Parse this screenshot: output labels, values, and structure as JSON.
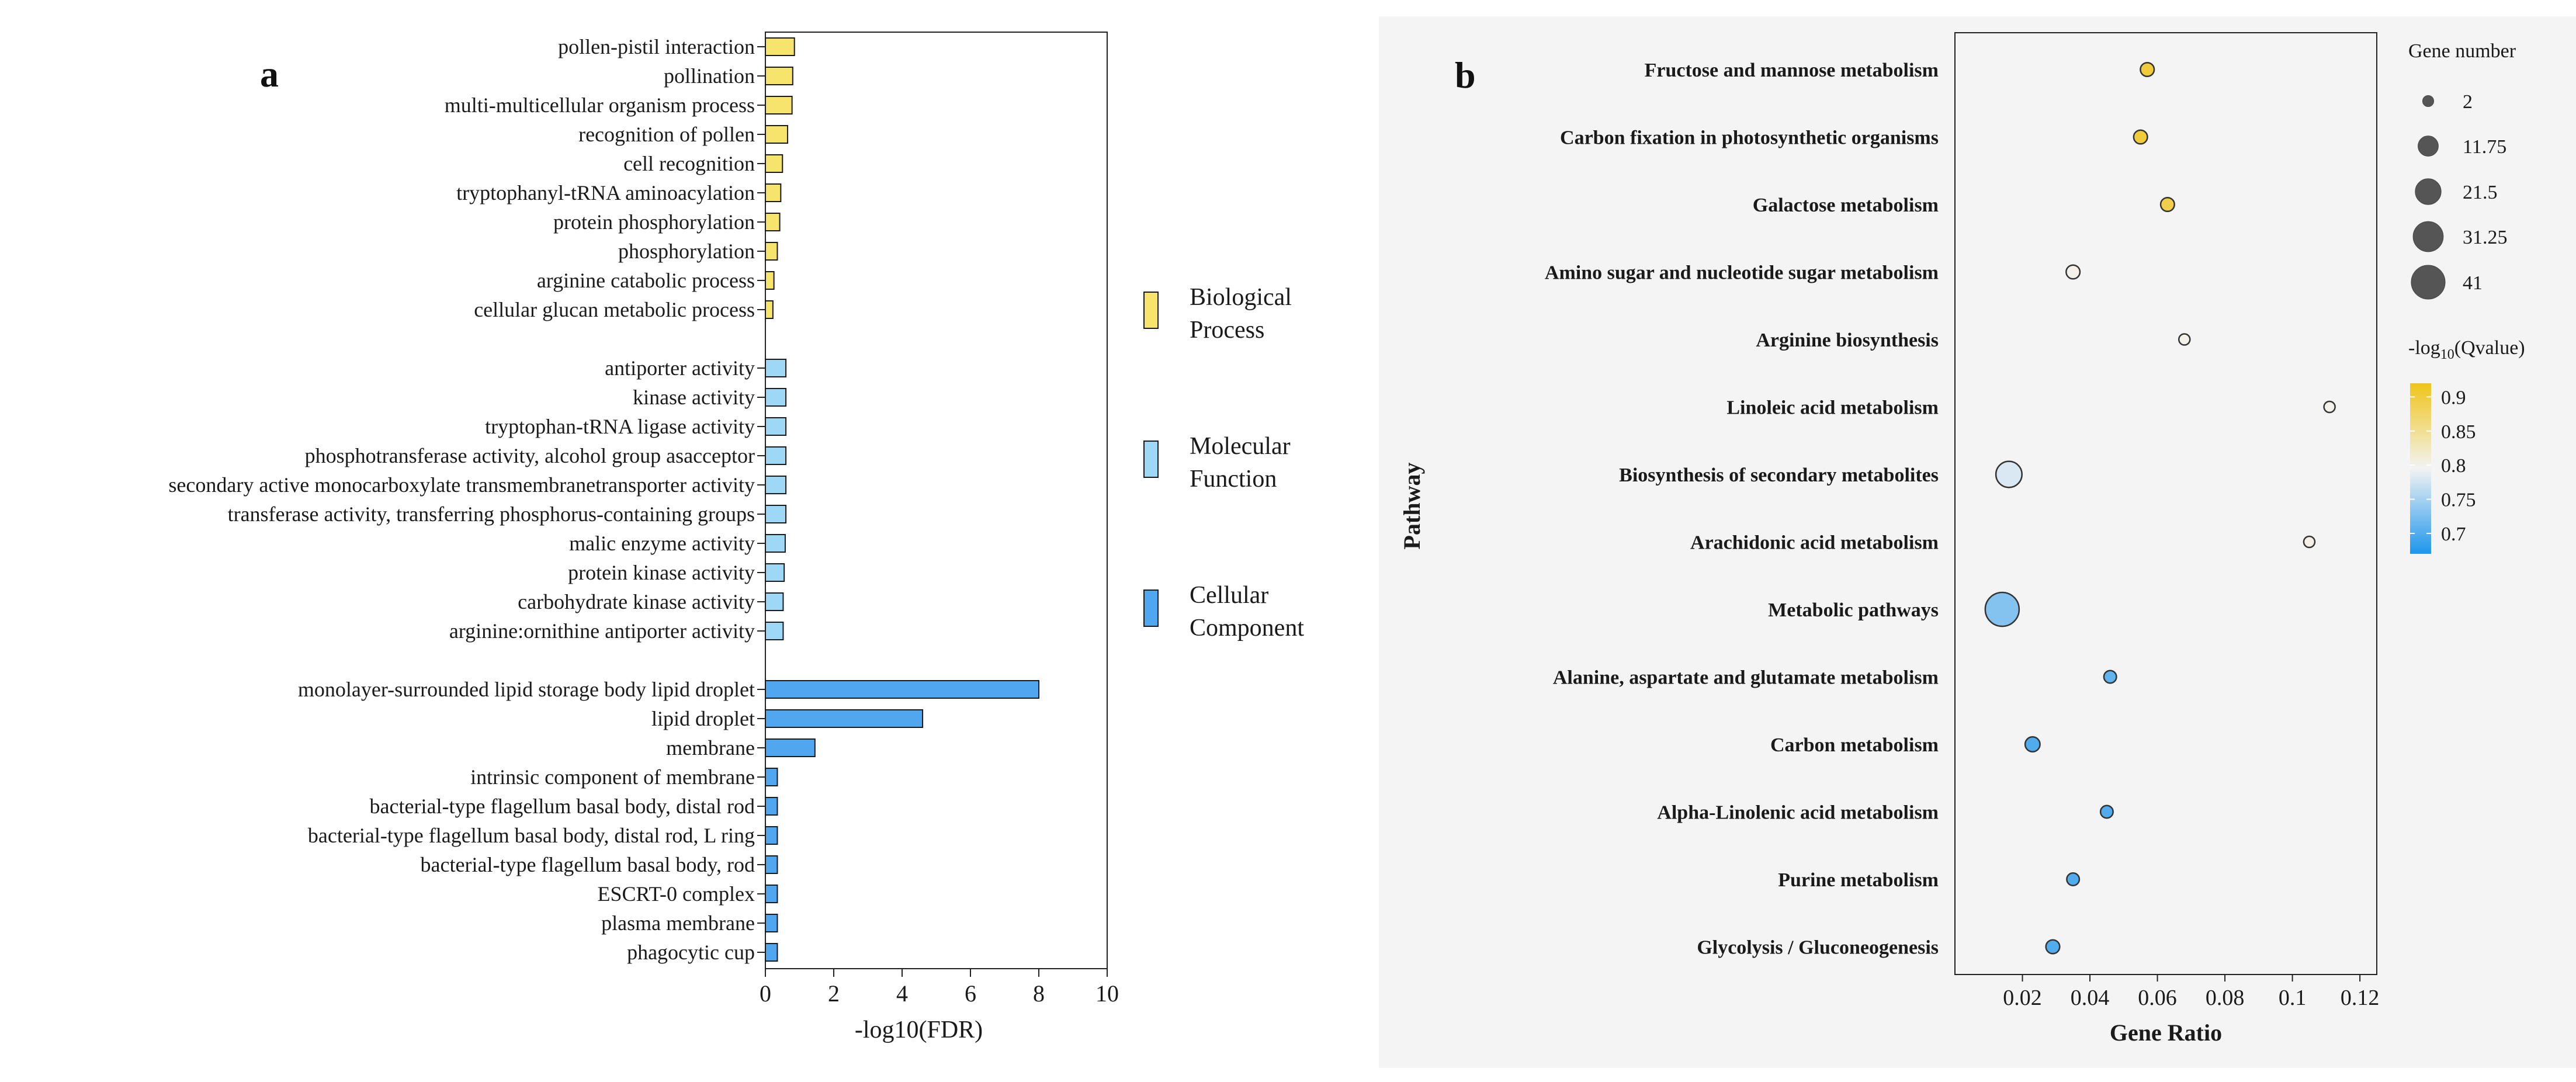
{
  "chart_data": [
    {
      "type": "bar",
      "orientation": "horizontal",
      "panel_label": "a",
      "xlabel": "-log10(FDR)",
      "xlim": [
        0,
        10
      ],
      "xticks": [
        "0",
        "2",
        "4",
        "6",
        "8",
        "10"
      ],
      "legend": [
        {
          "name": "Biological Process",
          "lines": [
            "Biological",
            "Process"
          ],
          "color": "#f6e46c"
        },
        {
          "name": "Molecular Function",
          "lines": [
            "Molecular",
            "Function"
          ],
          "color": "#9fd8f7"
        },
        {
          "name": "Cellular Component",
          "lines": [
            "Cellular",
            "Component"
          ],
          "color": "#4fa8ef"
        }
      ],
      "series": [
        {
          "name": "Biological Process",
          "color": "#f6e46c",
          "categories": [
            "pollen-pistil interaction",
            "pollination",
            "multi-multicellular organism process",
            "recognition of pollen",
            "cell recognition",
            "tryptophanyl-tRNA aminoacylation",
            "protein phosphorylation",
            "phosphorylation",
            "arginine catabolic process",
            "cellular glucan metabolic process"
          ],
          "values": [
            0.85,
            0.8,
            0.78,
            0.65,
            0.5,
            0.45,
            0.42,
            0.35,
            0.25,
            0.22
          ]
        },
        {
          "name": "Molecular Function",
          "color": "#9fd8f7",
          "categories": [
            "antiporter activity",
            "kinase activity",
            "tryptophan-tRNA ligase activity",
            "phosphotransferase activity, alcohol group asacceptor",
            "secondary active monocarboxylate transmembranetransporter activity",
            "transferase activity, transferring phosphorus-containing groups",
            "malic enzyme activity",
            "protein kinase activity",
            "carbohydrate kinase activity",
            "arginine:ornithine antiporter activity"
          ],
          "values": [
            0.6,
            0.6,
            0.6,
            0.6,
            0.6,
            0.6,
            0.58,
            0.55,
            0.52,
            0.52
          ]
        },
        {
          "name": "Cellular Component",
          "color": "#4fa8ef",
          "categories": [
            "monolayer-surrounded lipid storage body lipid droplet",
            "lipid droplet",
            "membrane",
            "intrinsic component of membrane",
            "bacterial-type flagellum basal body, distal rod",
            "bacterial-type flagellum basal body, distal rod, L ring",
            "bacterial-type flagellum basal body, rod",
            "ESCRT-0 complex",
            "plasma membrane",
            "phagocytic cup"
          ],
          "values": [
            8.0,
            4.6,
            1.45,
            0.35,
            0.35,
            0.35,
            0.35,
            0.35,
            0.35,
            0.35
          ]
        }
      ]
    },
    {
      "type": "scatter",
      "subtype": "bubble",
      "panel_label": "b",
      "xlabel": "Gene Ratio",
      "ylabel": "Pathway",
      "xlim": [
        0,
        0.125
      ],
      "xticks": [
        0.02,
        0.04,
        0.06,
        0.08,
        0.1,
        0.12
      ],
      "xtick_labels": [
        "0.02",
        "0.04",
        "0.06",
        "0.08",
        "0.1",
        "0.12"
      ],
      "categories": [
        "Fructose and mannose metabolism",
        "Carbon fixation in photosynthetic organisms",
        "Galactose metabolism",
        "Amino sugar and nucleotide sugar metabolism",
        "Arginine biosynthesis",
        "Linoleic acid metabolism",
        "Biosynthesis of secondary metabolites",
        "Arachidonic acid metabolism",
        "Metabolic pathways",
        "Alanine, aspartate and glutamate metabolism",
        "Carbon metabolism",
        "Alpha-Linolenic acid metabolism",
        "Purine metabolism",
        "Glycolysis / Gluconeogenesis"
      ],
      "points": [
        {
          "pathway": "Fructose and mannose metabolism",
          "gene_ratio": 0.057,
          "gene_number": 4,
          "neg_log10_qvalue": 0.9
        },
        {
          "pathway": "Carbon fixation in photosynthetic organisms",
          "gene_ratio": 0.055,
          "gene_number": 4,
          "neg_log10_qvalue": 0.9
        },
        {
          "pathway": "Galactose metabolism",
          "gene_ratio": 0.063,
          "gene_number": 4,
          "neg_log10_qvalue": 0.89
        },
        {
          "pathway": "Amino sugar and nucleotide sugar metabolism",
          "gene_ratio": 0.035,
          "gene_number": 4,
          "neg_log10_qvalue": 0.8
        },
        {
          "pathway": "Arginine biosynthesis",
          "gene_ratio": 0.068,
          "gene_number": 2,
          "neg_log10_qvalue": 0.8
        },
        {
          "pathway": "Linoleic acid metabolism",
          "gene_ratio": 0.111,
          "gene_number": 2,
          "neg_log10_qvalue": 0.8
        },
        {
          "pathway": "Biosynthesis of secondary metabolites",
          "gene_ratio": 0.016,
          "gene_number": 22,
          "neg_log10_qvalue": 0.78
        },
        {
          "pathway": "Arachidonic acid metabolism",
          "gene_ratio": 0.105,
          "gene_number": 2,
          "neg_log10_qvalue": 0.8
        },
        {
          "pathway": "Metabolic pathways",
          "gene_ratio": 0.014,
          "gene_number": 41,
          "neg_log10_qvalue": 0.73
        },
        {
          "pathway": "Alanine, aspartate and glutamate metabolism",
          "gene_ratio": 0.046,
          "gene_number": 3,
          "neg_log10_qvalue": 0.71
        },
        {
          "pathway": "Carbon metabolism",
          "gene_ratio": 0.023,
          "gene_number": 5,
          "neg_log10_qvalue": 0.7
        },
        {
          "pathway": "Alpha-Linolenic acid metabolism",
          "gene_ratio": 0.045,
          "gene_number": 3,
          "neg_log10_qvalue": 0.7
        },
        {
          "pathway": "Purine metabolism",
          "gene_ratio": 0.035,
          "gene_number": 3,
          "neg_log10_qvalue": 0.7
        },
        {
          "pathway": "Glycolysis / Gluconeogenesis",
          "gene_ratio": 0.029,
          "gene_number": 4,
          "neg_log10_qvalue": 0.7
        }
      ],
      "size_legend": {
        "title": "Gene number",
        "values": [
          2,
          11.75,
          21.5,
          31.25,
          41
        ],
        "labels": [
          "2",
          "11.75",
          "21.5",
          "31.25",
          "41"
        ]
      },
      "color_legend": {
        "title_prefix": "-log",
        "title_sub": "10",
        "title_suffix": "(Qvalue)",
        "range": [
          0.67,
          0.92
        ],
        "ticks": [
          0.9,
          0.85,
          0.8,
          0.75,
          0.7
        ],
        "tick_labels": [
          "0.9",
          "0.85",
          "0.8",
          "0.75",
          "0.7"
        ],
        "stops": [
          "#1e96ec",
          "#f3f3f3",
          "#f0c419"
        ]
      }
    }
  ]
}
